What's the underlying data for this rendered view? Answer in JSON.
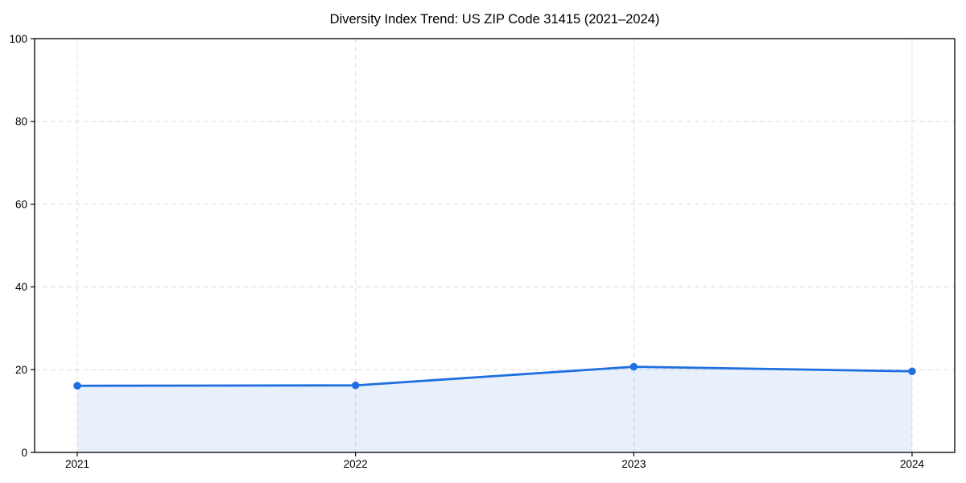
{
  "chart_data": {
    "type": "area",
    "title": "Diversity Index Trend: US ZIP Code 31415 (2021–2024)",
    "series_name": "Diversity Index",
    "categories": [
      "2021",
      "2022",
      "2023",
      "2024"
    ],
    "values": [
      16.1,
      16.2,
      20.7,
      19.6
    ],
    "xlabel": "",
    "ylabel": "",
    "ylim": [
      0,
      100
    ],
    "yticks": [
      0,
      20,
      40,
      60,
      80,
      100
    ],
    "grid": "dashed-both-axes",
    "legend": "none",
    "marker": "circle",
    "colors": {
      "line": "#1f6fe0",
      "marker": "#1f6fe0",
      "fill": "rgba(31,111,224,0.10)",
      "grid": "#dcdcdc",
      "axis": "#000000",
      "text": "#000000",
      "background": "#ffffff"
    }
  }
}
